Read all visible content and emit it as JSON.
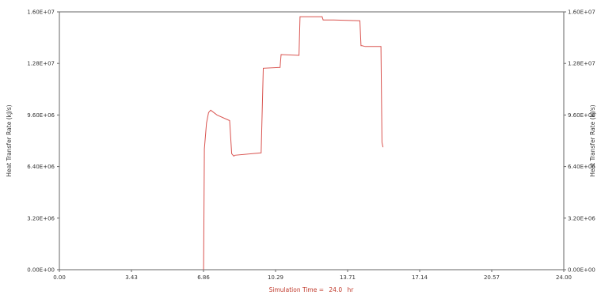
{
  "chart_data": {
    "type": "line",
    "title": "",
    "xlabel_prefix": "Simulation Time =",
    "xlabel_value": "24.0",
    "xlabel_unit": "hr",
    "ylabel_left": "Heat Transfer Rate (kJ/s)",
    "ylabel_right": "Heat Transfer Rate (kJ/s)",
    "x_ticks": [
      "0.00",
      "3.43",
      "6.86",
      "10.29",
      "13.71",
      "17.14",
      "20.57",
      "24.00"
    ],
    "y_ticks": [
      "0.00E+00",
      "3.20E+06",
      "6.40E+06",
      "9.60E+06",
      "1.28E+07",
      "1.60E+07"
    ],
    "y_ticks_right": [
      "0.00E+00",
      "3.20E+06",
      "6.40E+06",
      "9.60E+06",
      "1.28E+07",
      "1.60E+07"
    ],
    "xlim": [
      0,
      24
    ],
    "ylim": [
      0,
      16000000
    ],
    "grid": false,
    "legend": "none",
    "line_color": "#d9534f",
    "series": [
      {
        "x": [
          6.86,
          6.9,
          7.0,
          7.1,
          7.2,
          7.5,
          8.1,
          8.2,
          8.3,
          8.35,
          9.6,
          9.7,
          10.5,
          10.55,
          11.4,
          11.45,
          12.5,
          12.55,
          13.0,
          13.05,
          14.3,
          14.35,
          14.4,
          14.55,
          14.6,
          15.3,
          15.35,
          15.4
        ],
        "y": [
          0,
          7500000,
          9100000,
          9750000,
          9900000,
          9600000,
          9250000,
          7200000,
          7050000,
          7100000,
          7250000,
          12500000,
          12550000,
          13350000,
          13300000,
          15700000,
          15700000,
          15500000,
          15500000,
          15500000,
          15450000,
          13900000,
          13900000,
          13850000,
          13850000,
          13850000,
          7900000,
          7600000
        ]
      }
    ]
  }
}
